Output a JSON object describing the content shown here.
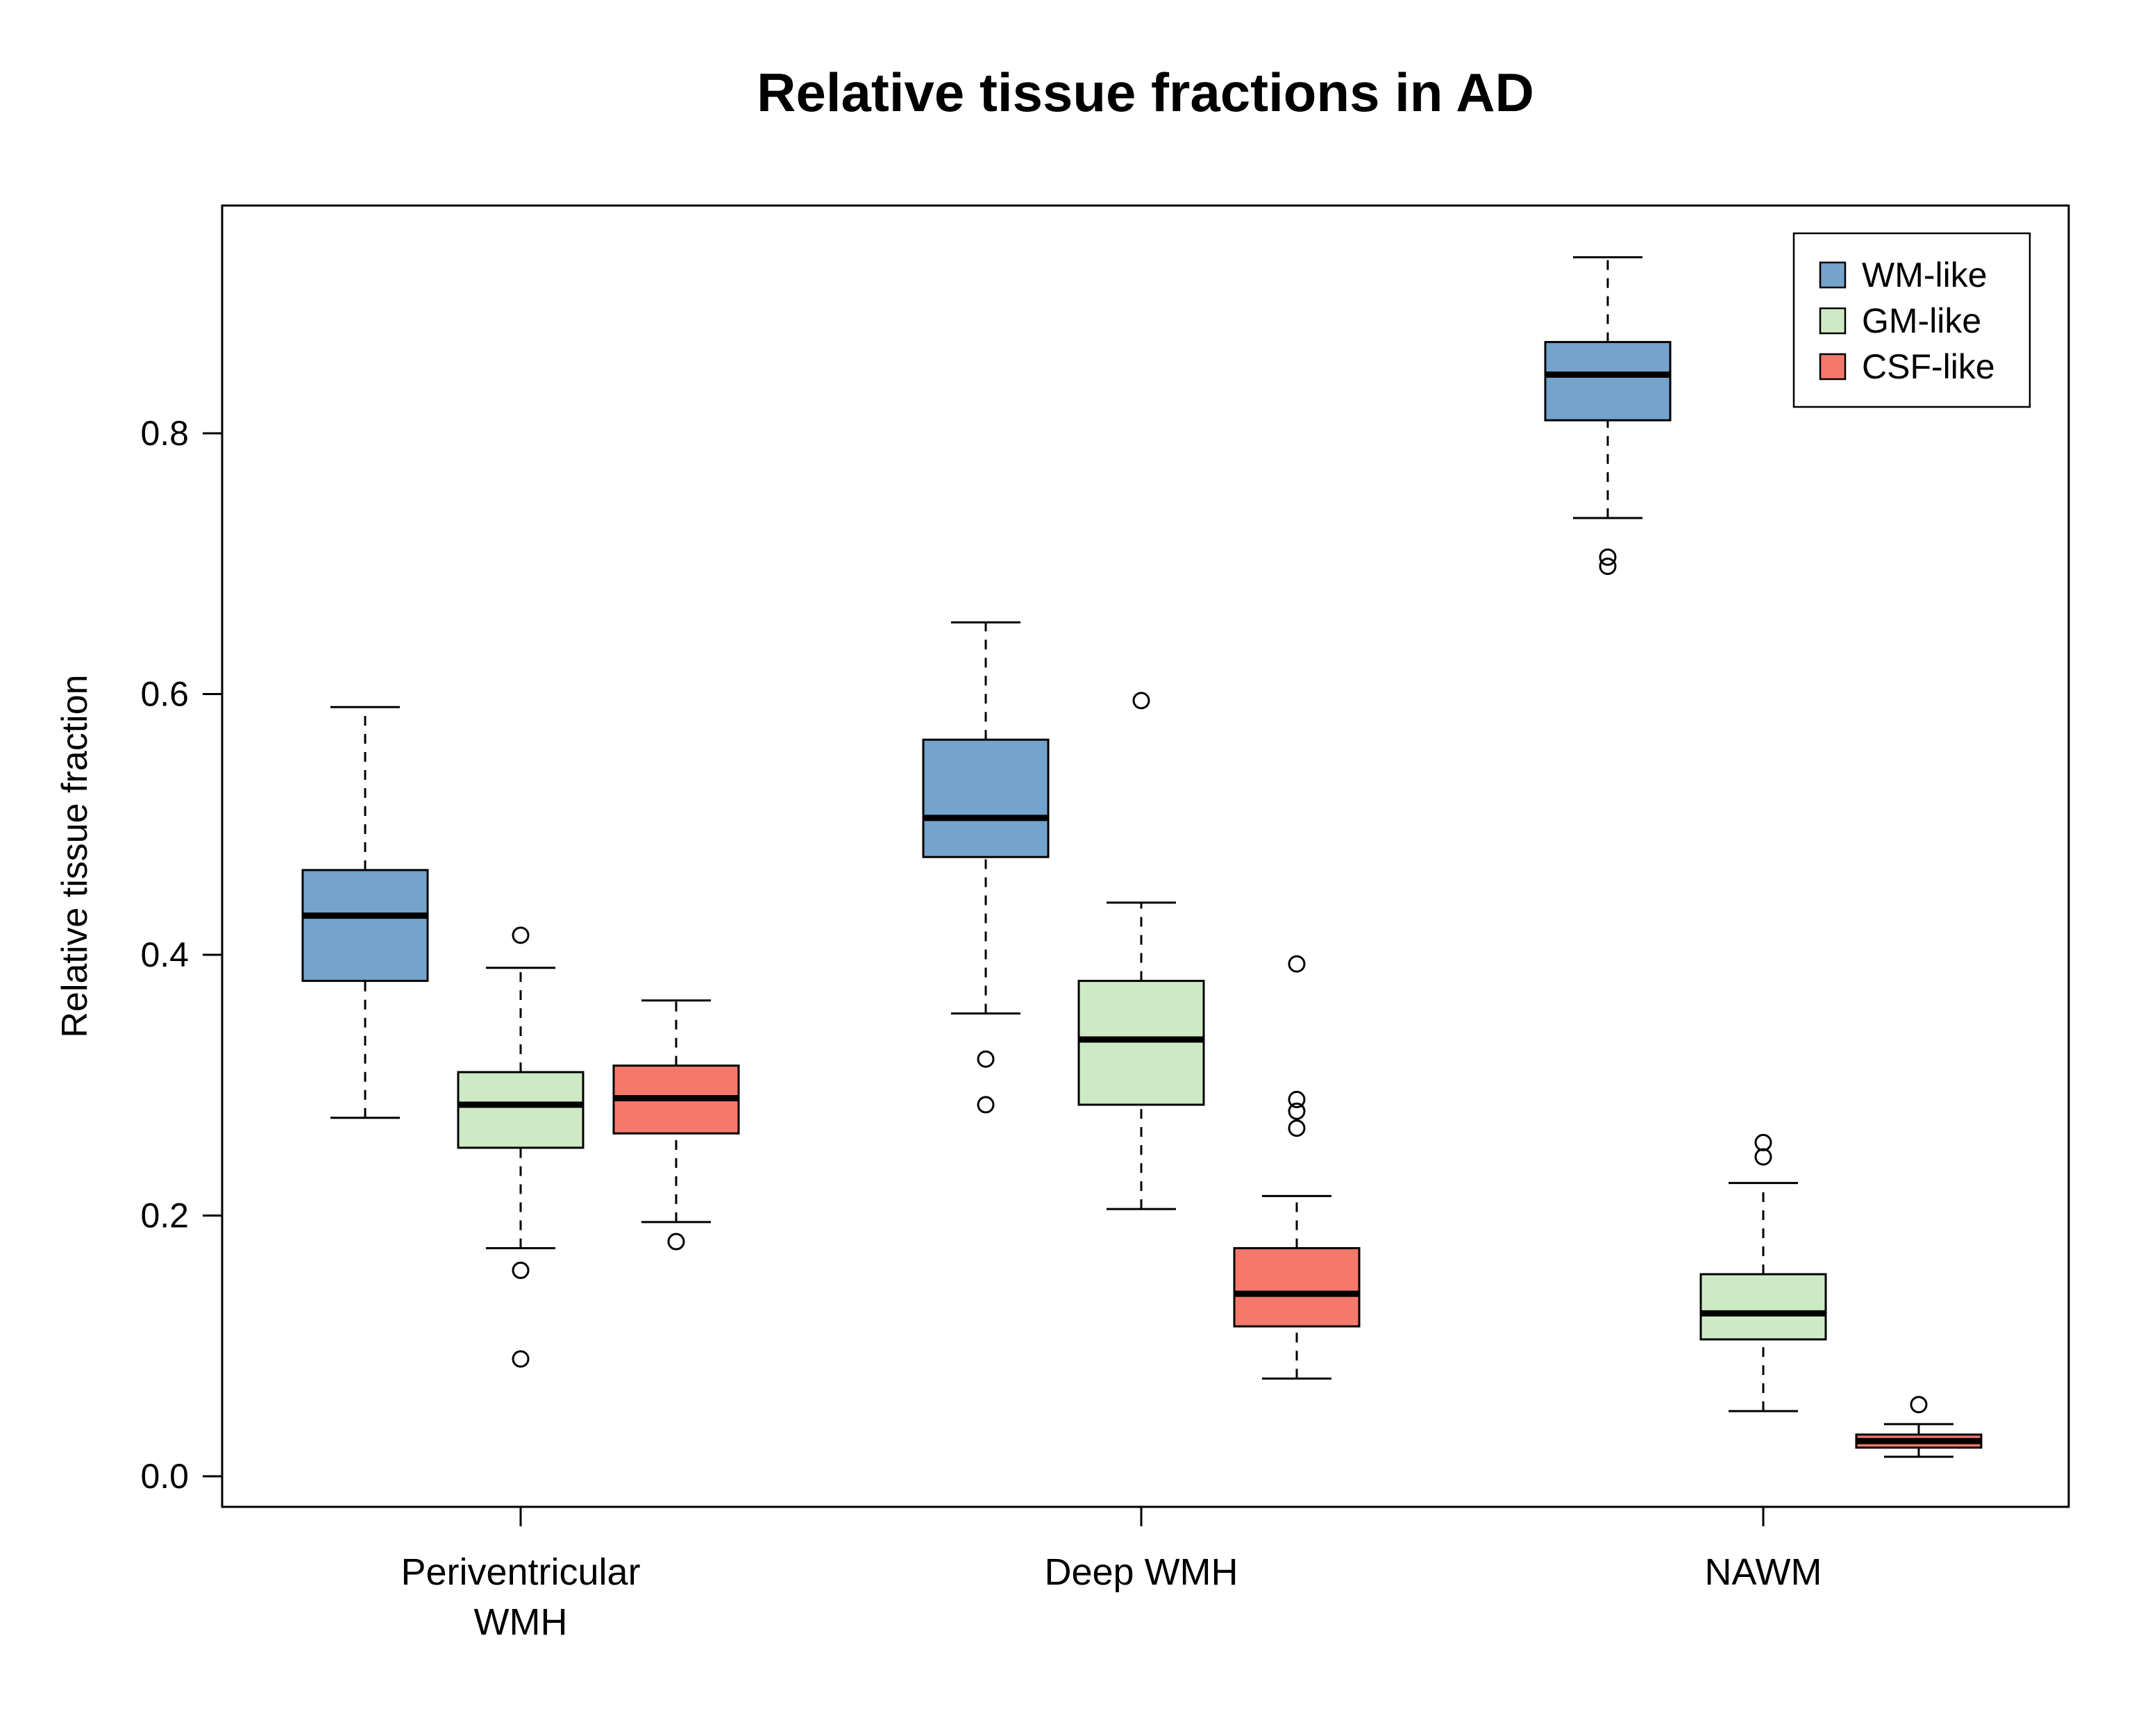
{
  "chart_data": {
    "type": "boxplot",
    "title": "Relative tissue fractions in AD",
    "ylabel": "Relative tissue fraction",
    "xlabel": "",
    "ylim": [
      -0.025,
      0.975
    ],
    "yticks": [
      0.0,
      0.2,
      0.4,
      0.6,
      0.8
    ],
    "grid": "off",
    "legend_position": "top-right",
    "categories": [
      "Periventricular\nWMH",
      "Deep WMH",
      "NAWM"
    ],
    "series": [
      {
        "name": "WM-like",
        "color": "#74A3CC",
        "boxes": [
          {
            "low": 0.275,
            "q1": 0.38,
            "median": 0.43,
            "q3": 0.465,
            "high": 0.59,
            "outliers": []
          },
          {
            "low": 0.355,
            "q1": 0.475,
            "median": 0.505,
            "q3": 0.565,
            "high": 0.655,
            "outliers": [
              0.32,
              0.285
            ]
          },
          {
            "low": 0.735,
            "q1": 0.81,
            "median": 0.845,
            "q3": 0.87,
            "high": 0.935,
            "outliers": [
              0.705,
              0.698
            ]
          }
        ]
      },
      {
        "name": "GM-like",
        "color": "#CDEAC4",
        "boxes": [
          {
            "low": 0.175,
            "q1": 0.252,
            "median": 0.285,
            "q3": 0.31,
            "high": 0.39,
            "outliers": [
              0.415,
              0.158,
              0.09
            ]
          },
          {
            "low": 0.205,
            "q1": 0.285,
            "median": 0.335,
            "q3": 0.38,
            "high": 0.44,
            "outliers": [
              0.595
            ]
          },
          {
            "low": 0.05,
            "q1": 0.105,
            "median": 0.125,
            "q3": 0.155,
            "high": 0.225,
            "outliers": [
              0.256,
              0.245
            ]
          }
        ]
      },
      {
        "name": "CSF-like",
        "color": "#F4796B",
        "boxes": [
          {
            "low": 0.195,
            "q1": 0.263,
            "median": 0.29,
            "q3": 0.315,
            "high": 0.365,
            "outliers": [
              0.18
            ]
          },
          {
            "low": 0.075,
            "q1": 0.115,
            "median": 0.14,
            "q3": 0.175,
            "high": 0.215,
            "outliers": [
              0.393,
              0.289,
              0.28,
              0.267
            ]
          },
          {
            "low": 0.015,
            "q1": 0.022,
            "median": 0.027,
            "q3": 0.032,
            "high": 0.04,
            "outliers": [
              0.055
            ]
          }
        ]
      }
    ]
  }
}
